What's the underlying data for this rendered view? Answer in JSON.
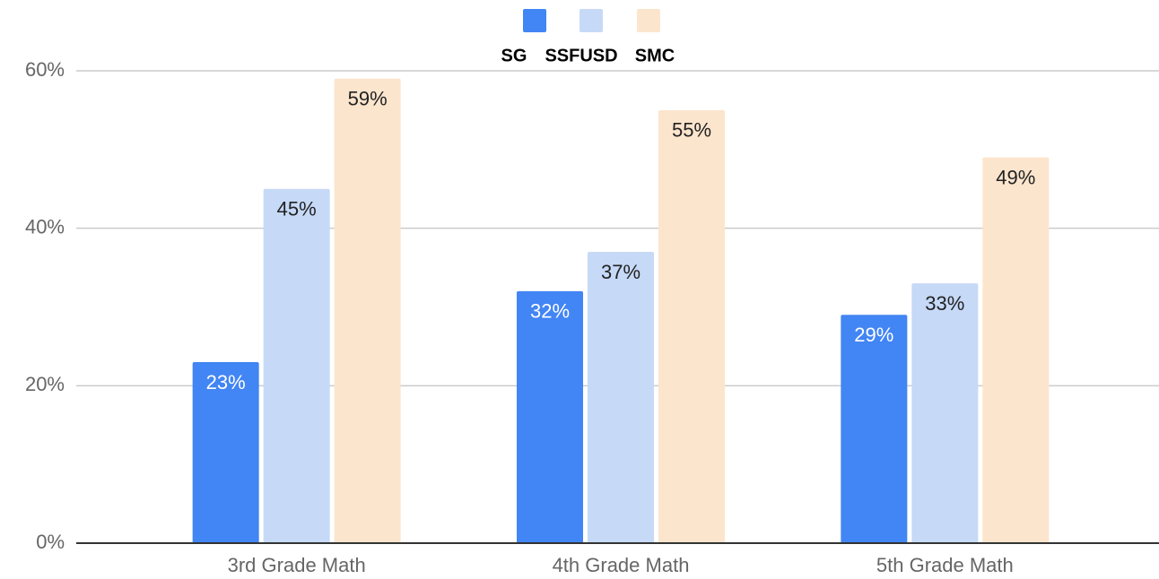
{
  "chart_data": {
    "type": "bar",
    "categories": [
      "3rd Grade Math",
      "4th Grade Math",
      "5th Grade Math"
    ],
    "series": [
      {
        "name": "SG",
        "color": "#4285f4",
        "values": [
          23,
          32,
          29
        ],
        "value_labels": [
          "23%",
          "32%",
          "29%"
        ]
      },
      {
        "name": "SSFUSD",
        "color": "#c6d9f7",
        "values": [
          45,
          37,
          33
        ],
        "value_labels": [
          "45%",
          "37%",
          "33%"
        ]
      },
      {
        "name": "SMC",
        "color": "#fce5cd",
        "values": [
          59,
          55,
          49
        ],
        "value_labels": [
          "59%",
          "55%",
          "49%"
        ]
      }
    ],
    "ylim": [
      0,
      60
    ],
    "yticks": [
      {
        "value": 0,
        "label": "0%"
      },
      {
        "value": 20,
        "label": "20%"
      },
      {
        "value": 40,
        "label": "40%"
      },
      {
        "value": 60,
        "label": "60%"
      }
    ],
    "grid": true,
    "legend": "top"
  }
}
